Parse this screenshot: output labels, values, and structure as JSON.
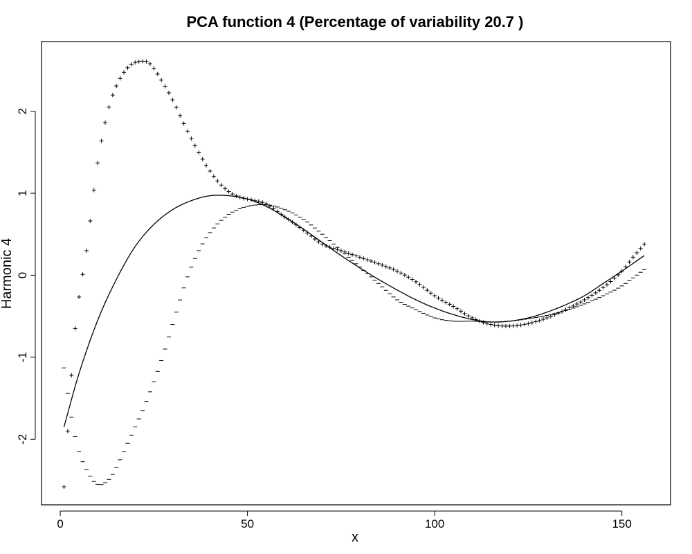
{
  "chart_data": {
    "type": "line",
    "title": "PCA function 4 (Percentage of variability 20.7 )",
    "xlabel": "x",
    "ylabel": "Harmonic 4",
    "xlim": [
      -5,
      163
    ],
    "ylim": [
      -2.8,
      2.85
    ],
    "xticks": [
      0,
      50,
      100,
      150
    ],
    "yticks": [
      -2,
      -1,
      0,
      1,
      2
    ],
    "grid": false,
    "legend": "none",
    "colors": {
      "line": "#000000",
      "frame": "#000000"
    },
    "x_range": [
      1,
      156
    ],
    "series": [
      {
        "style": "solid-line",
        "x": [
          1,
          5,
          10,
          15,
          20,
          25,
          30,
          35,
          40,
          45,
          50,
          55,
          60,
          65,
          70,
          75,
          80,
          85,
          90,
          95,
          100,
          105,
          110,
          115,
          120,
          125,
          130,
          135,
          140,
          145,
          150,
          156
        ],
        "y": [
          -1.85,
          -1.2,
          -0.55,
          -0.05,
          0.35,
          0.62,
          0.8,
          0.91,
          0.97,
          0.97,
          0.93,
          0.84,
          0.71,
          0.56,
          0.4,
          0.24,
          0.09,
          -0.05,
          -0.18,
          -0.3,
          -0.4,
          -0.48,
          -0.54,
          -0.57,
          -0.56,
          -0.52,
          -0.45,
          -0.36,
          -0.25,
          -0.1,
          0.05,
          0.24
        ]
      },
      {
        "style": "plus-marker",
        "marker": "+",
        "x": [
          1,
          4,
          7,
          10,
          13,
          16,
          19,
          22,
          24,
          27,
          30,
          33,
          36,
          39,
          42,
          45,
          48,
          51,
          55,
          60,
          65,
          70,
          75,
          80,
          85,
          90,
          95,
          100,
          105,
          110,
          115,
          120,
          125,
          130,
          135,
          140,
          145,
          150,
          153,
          156
        ],
        "y": [
          -2.58,
          -0.65,
          0.3,
          1.37,
          2.05,
          2.4,
          2.57,
          2.61,
          2.58,
          2.38,
          2.14,
          1.85,
          1.58,
          1.34,
          1.15,
          1.02,
          0.95,
          0.92,
          0.87,
          0.71,
          0.55,
          0.38,
          0.3,
          0.22,
          0.14,
          0.05,
          -0.08,
          -0.25,
          -0.38,
          -0.52,
          -0.6,
          -0.62,
          -0.59,
          -0.52,
          -0.42,
          -0.3,
          -0.15,
          0.05,
          0.22,
          0.38
        ]
      },
      {
        "style": "minus-marker",
        "marker": "-",
        "x": [
          1,
          3,
          5,
          8,
          10,
          12,
          14,
          16,
          18,
          20,
          22,
          25,
          28,
          31,
          34,
          37,
          40,
          43,
          46,
          50,
          55,
          60,
          65,
          70,
          75,
          80,
          85,
          90,
          95,
          100,
          105,
          110,
          115,
          120,
          125,
          130,
          135,
          140,
          145,
          150,
          156
        ],
        "y": [
          -1.13,
          -1.73,
          -2.15,
          -2.45,
          -2.55,
          -2.53,
          -2.43,
          -2.25,
          -2.05,
          -1.85,
          -1.65,
          -1.3,
          -0.9,
          -0.45,
          -0.02,
          0.3,
          0.52,
          0.67,
          0.77,
          0.84,
          0.86,
          0.8,
          0.68,
          0.5,
          0.3,
          0.1,
          -0.1,
          -0.3,
          -0.42,
          -0.52,
          -0.56,
          -0.56,
          -0.57,
          -0.56,
          -0.53,
          -0.49,
          -0.43,
          -0.35,
          -0.25,
          -0.13,
          0.07
        ]
      }
    ]
  }
}
